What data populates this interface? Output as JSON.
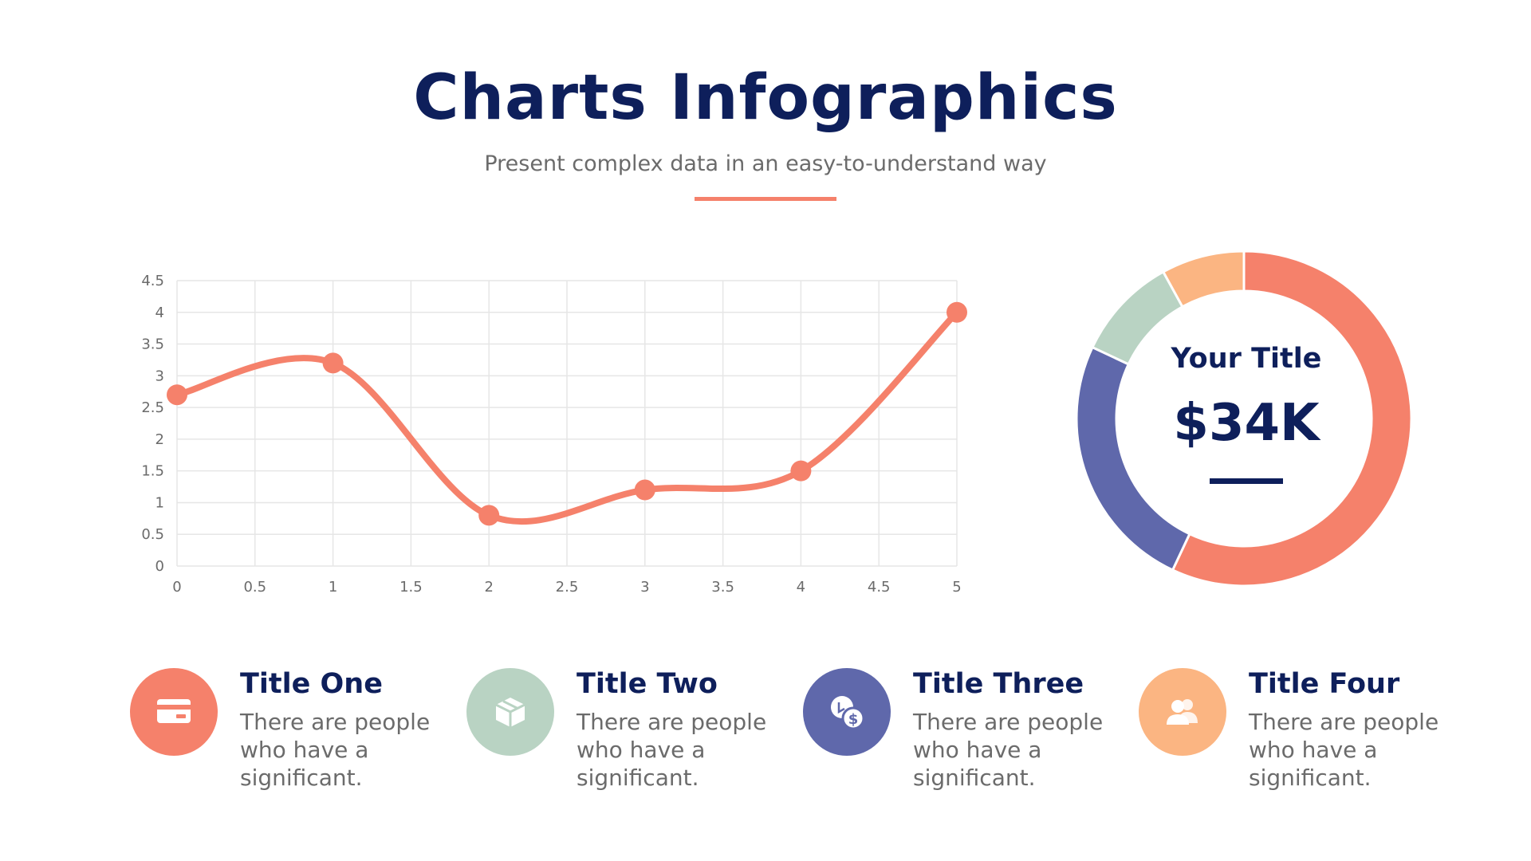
{
  "header": {
    "title": "Charts Infographics",
    "subtitle": "Present complex data in an easy-to-understand way"
  },
  "colors": {
    "navy": "#0e1f5b",
    "coral": "#f5816b",
    "sage": "#b9d3c3",
    "indigo": "#5f68ab",
    "peach": "#fbb582",
    "grid": "#e6e6e6",
    "text_gray": "#6b6b6b"
  },
  "chart_data": [
    {
      "type": "line",
      "smooth": true,
      "x": [
        0,
        1,
        2,
        3,
        4,
        5
      ],
      "series": [
        {
          "values": [
            2.7,
            3.2,
            0.8,
            1.2,
            1.5,
            4.0
          ],
          "color": "#f5816b"
        }
      ],
      "xlim": [
        0,
        5
      ],
      "ylim": [
        0,
        4.5
      ],
      "xticks": [
        "0",
        "0.5",
        "1",
        "1.5",
        "2",
        "2.5",
        "3",
        "3.5",
        "4",
        "4.5",
        "5"
      ],
      "yticks": [
        "0",
        "0.5",
        "1",
        "1.5",
        "2",
        "2.5",
        "3",
        "3.5",
        "4",
        "4.5"
      ],
      "grid": true
    },
    {
      "type": "pie",
      "donut": true,
      "center_title": "Your Title",
      "center_value": "$34K",
      "slices": [
        {
          "value": 57,
          "color": "#f5816b"
        },
        {
          "value": 25,
          "color": "#5f68ab"
        },
        {
          "value": 10,
          "color": "#b9d3c3"
        },
        {
          "value": 8,
          "color": "#fbb582"
        }
      ]
    }
  ],
  "features": [
    {
      "title": "Title One",
      "description": "There are people who have a significant.",
      "icon": "credit-card-icon",
      "color": "#f5816b"
    },
    {
      "title": "Title Two",
      "description": "There are people who have a significant.",
      "icon": "box-icon",
      "color": "#b9d3c3"
    },
    {
      "title": "Title Three",
      "description": "There are people who have a significant.",
      "icon": "money-exchange-icon",
      "color": "#5f68ab"
    },
    {
      "title": "Title Four",
      "description": "There are people who have a significant.",
      "icon": "users-icon",
      "color": "#fbb582"
    }
  ]
}
